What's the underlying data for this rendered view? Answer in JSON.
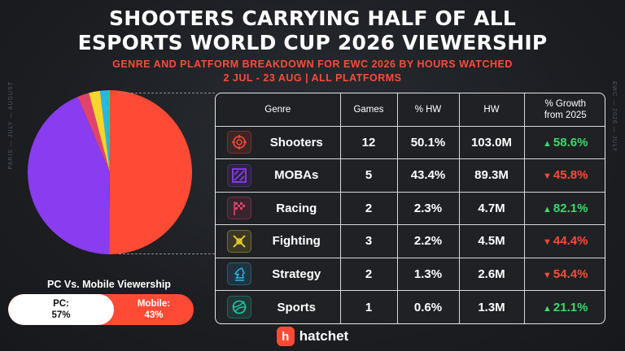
{
  "title_line1": "SHOOTERS CARRYING HALF OF ALL",
  "title_line2": "ESPORTS WORLD CUP 2026 VIEWERSHIP",
  "subtitle_line1": "GENRE AND PLATFORM BREAKDOWN FOR EWC 2026 BY HOURS WATCHED",
  "subtitle_line2": "2 JUL - 23 AUG | ALL PLATFORMS",
  "side_left": "PARIS — JULY — AUGUST",
  "side_right": "EWC — 2026 — JULY",
  "platform": {
    "label": "PC Vs. Mobile Viewership",
    "pc_name": "PC:",
    "pc_value": "57%",
    "mobile_name": "Mobile:",
    "mobile_value": "43%",
    "pc_share": 57,
    "mobile_share": 43
  },
  "table": {
    "headers": {
      "genre": "Genre",
      "games": "Games",
      "share": "% HW",
      "hw": "HW",
      "growth_l1": "% Growth",
      "growth_l2": "from 2025"
    },
    "rows": [
      {
        "genre": "Shooters",
        "games": "12",
        "share": "50.1%",
        "hw": "103.0M",
        "growth": "58.6%",
        "direction": "up",
        "icon": "crosshair-icon",
        "icon_color": "#ff4b36"
      },
      {
        "genre": "MOBAs",
        "games": "5",
        "share": "43.4%",
        "hw": "89.3M",
        "growth": "45.8%",
        "direction": "down",
        "icon": "moba-map-icon",
        "icon_color": "#8a3cf0"
      },
      {
        "genre": "Racing",
        "games": "2",
        "share": "2.3%",
        "hw": "4.7M",
        "growth": "82.1%",
        "direction": "up",
        "icon": "checkered-flag-icon",
        "icon_color": "#e0446a"
      },
      {
        "genre": "Fighting",
        "games": "3",
        "share": "2.2%",
        "hw": "4.5M",
        "growth": "44.4%",
        "direction": "down",
        "icon": "fighting-icon",
        "icon_color": "#f3d72a"
      },
      {
        "genre": "Strategy",
        "games": "2",
        "share": "1.3%",
        "hw": "2.6M",
        "growth": "54.4%",
        "direction": "down",
        "icon": "chess-knight-icon",
        "icon_color": "#2bb6e8"
      },
      {
        "genre": "Sports",
        "games": "1",
        "share": "0.6%",
        "hw": "1.3M",
        "growth": "21.1%",
        "direction": "up",
        "icon": "ball-icon",
        "icon_color": "#27c7a4"
      }
    ],
    "up_arrow": "▲",
    "down_arrow": "▼"
  },
  "logo": {
    "mark": "h",
    "text": "hatchet"
  },
  "chart_data": {
    "type": "pie",
    "title": "",
    "categories": [
      "Shooters",
      "MOBAs",
      "Racing",
      "Fighting",
      "Strategy",
      "Sports"
    ],
    "values": [
      50.1,
      43.4,
      2.3,
      2.2,
      1.3,
      0.6
    ],
    "colors": [
      "#ff4b36",
      "#8a3cf0",
      "#e0446a",
      "#f3d72a",
      "#2bb6e8",
      "#27c7a4"
    ],
    "legend": "none"
  }
}
